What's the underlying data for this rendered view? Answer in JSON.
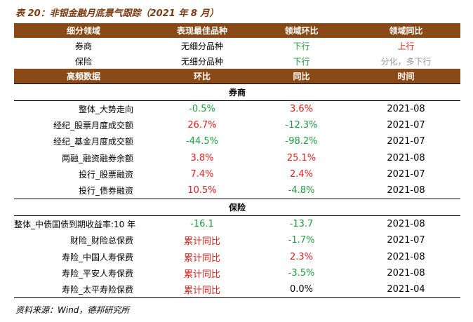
{
  "title": "表 20：非银金融月底景气跟踪（2021 年 8 月）",
  "summary_header": [
    "细分领域",
    "表现最佳品种",
    "领域环比",
    "领域同比"
  ],
  "summary_rows": [
    {
      "domain": "券商",
      "best": "无细分品种",
      "mom": "下行",
      "mom_color": "green",
      "yoy": "上行",
      "yoy_color": "red"
    },
    {
      "domain": "保险",
      "best": "无细分品种",
      "mom": "下行",
      "mom_color": "green",
      "yoy": "分化，多下行",
      "yoy_color": "gray"
    }
  ],
  "data_header": [
    "高频数据",
    "环比",
    "同比",
    "时间"
  ],
  "sections": [
    {
      "name": "券商",
      "rows": [
        {
          "label": "整体_大势走向",
          "mom": "-0.5%",
          "mom_color": "green",
          "yoy": "3.6%",
          "yoy_color": "red",
          "date": "2021-08"
        },
        {
          "label": "经纪_股票月度成交额",
          "mom": "26.7%",
          "mom_color": "red",
          "yoy": "-12.3%",
          "yoy_color": "green",
          "date": "2021-07"
        },
        {
          "label": "经纪_基金月度成交额",
          "mom": "-44.5%",
          "mom_color": "green",
          "yoy": "-98.2%",
          "yoy_color": "green",
          "date": "2021-07"
        },
        {
          "label": "两融_融资融券余额",
          "mom": "3.8%",
          "mom_color": "red",
          "yoy": "25.1%",
          "yoy_color": "red",
          "date": "2021-08"
        },
        {
          "label": "投行_股票融资",
          "mom": "7.4%",
          "mom_color": "red",
          "yoy": "2.4%",
          "yoy_color": "red",
          "date": "2021-07"
        },
        {
          "label": "投行_债券融资",
          "mom": "10.5%",
          "mom_color": "red",
          "yoy": "-4.8%",
          "yoy_color": "green",
          "date": "2021-08"
        }
      ]
    },
    {
      "name": "保险",
      "rows": [
        {
          "label": "整体_中债国债到期收益率:10 年",
          "mom": "-16.1",
          "mom_color": "green",
          "yoy": "-13.7",
          "yoy_color": "green",
          "date": "2021-08"
        },
        {
          "label": "财险_财险总保费",
          "mom": "累计同比",
          "mom_color": "red",
          "yoy": "-1.7%",
          "yoy_color": "green",
          "date": "2021-07"
        },
        {
          "label": "寿险_中国人寿保费",
          "mom": "累计同比",
          "mom_color": "red",
          "yoy": "2.3%",
          "yoy_color": "red",
          "date": "2021-08"
        },
        {
          "label": "寿险_平安人寿保费",
          "mom": "累计同比",
          "mom_color": "red",
          "yoy": "-3.5%",
          "yoy_color": "green",
          "date": "2021-08"
        },
        {
          "label": "寿险_太平寿险保费",
          "mom": "累计同比",
          "mom_color": "red",
          "yoy": "0.0%",
          "yoy_color": "black",
          "date": "2021-04"
        }
      ]
    }
  ],
  "source": "资料来源：Wind，德邦研究所"
}
